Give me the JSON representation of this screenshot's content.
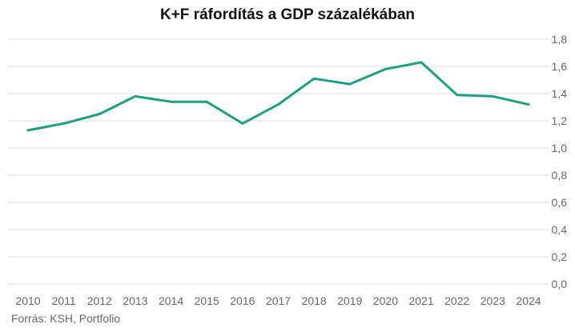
{
  "chart_data": {
    "type": "line",
    "title": "K+F ráfordítás a GDP százalékában",
    "xlabel": "",
    "ylabel": "",
    "categories": [
      "2010",
      "2011",
      "2012",
      "2013",
      "2014",
      "2015",
      "2016",
      "2017",
      "2018",
      "2019",
      "2020",
      "2021",
      "2022",
      "2023",
      "2024"
    ],
    "series": [
      {
        "values": [
          1.13,
          1.18,
          1.25,
          1.38,
          1.34,
          1.34,
          1.18,
          1.32,
          1.51,
          1.47,
          1.58,
          1.63,
          1.39,
          1.38,
          1.32
        ]
      }
    ],
    "ylim": [
      0,
      1.8
    ],
    "yticks": [
      "0,0",
      "0,2",
      "0,4",
      "0,6",
      "0,8",
      "1,0",
      "1,2",
      "1,4",
      "1,6",
      "1,8"
    ],
    "grid": true,
    "y_axis_position": "right",
    "line_color": "#1aa37a",
    "grid_color": "#dddddd",
    "source": "Forrás: KSH, Portfolio"
  }
}
